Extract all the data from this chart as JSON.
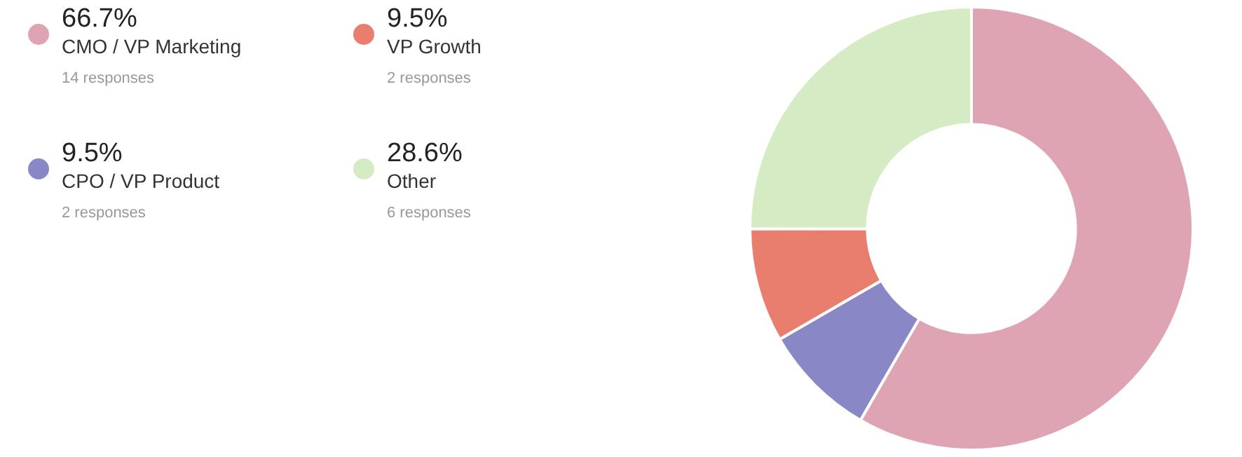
{
  "chart_data": {
    "type": "donut",
    "categories": [
      "CMO / VP Marketing",
      "CPO / VP Product",
      "VP Growth",
      "Other"
    ],
    "values": [
      66.7,
      9.5,
      9.5,
      28.6
    ],
    "value_labels": [
      "66.7%",
      "9.5%",
      "9.5%",
      "28.6%"
    ],
    "colors": [
      "#dea4b4",
      "#8a87c6",
      "#e97e6e",
      "#d5ebc3"
    ],
    "annotations": [
      "14 responses",
      "2 responses",
      "2 responses",
      "6 responses"
    ],
    "legend": "left"
  }
}
